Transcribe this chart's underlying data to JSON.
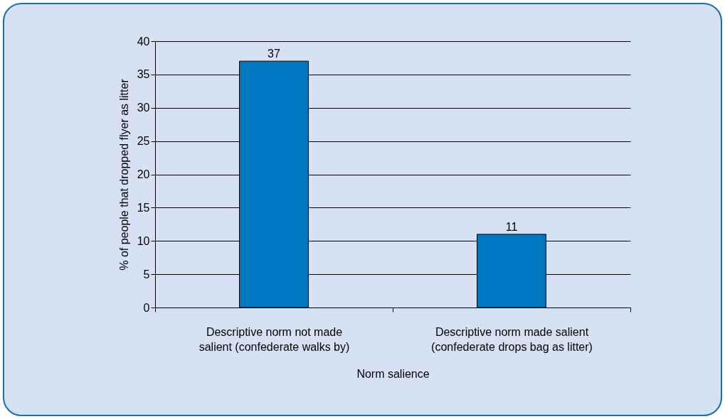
{
  "chart_data": {
    "type": "bar",
    "xlabel": "Norm salience",
    "ylabel": "% of people that dropped flyer as litter",
    "categories": [
      "Descriptive norm not made salient (confederate walks by)",
      "Descriptive norm made salient (confederate drops bag as litter)"
    ],
    "values": [
      37,
      11
    ],
    "color": "#0077c0",
    "ylim": [
      0,
      40
    ],
    "yticks": [
      0,
      5,
      10,
      15,
      20,
      25,
      30,
      35,
      40
    ],
    "grid": "y",
    "data_labels": true
  }
}
